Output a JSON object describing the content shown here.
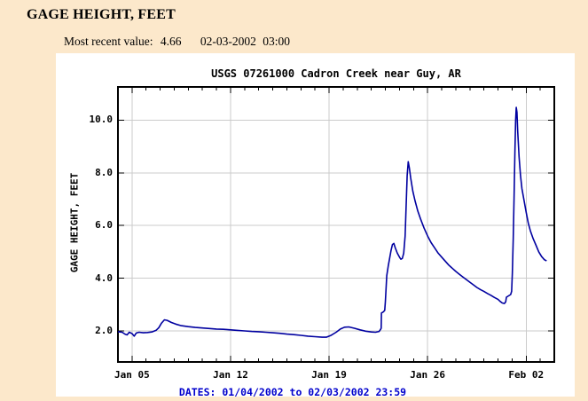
{
  "page": {
    "title": "GAGE HEIGHT, FEET",
    "most_recent": {
      "label": "Most recent value:",
      "value": "4.66",
      "date": "02-03-2002",
      "time": "03:00"
    }
  },
  "colors": {
    "page_bg": "#FCE8CB",
    "chart_bg": "#FFFFFF",
    "line": "#0000A0",
    "grid": "#CBCBCB",
    "axis": "#000000",
    "dates_text": "#0000CC",
    "text": "#000000"
  },
  "chart_data": {
    "type": "line",
    "title": "USGS 07261000 Cadron Creek near Guy, AR",
    "ylabel": "GAGE HEIGHT, FEET",
    "xlabel": "",
    "dates_label": "DATES: 01/04/2002 to 02/03/2002 23:59",
    "x_start": "01/04/2002 00:00",
    "x_end": "02/03/2002 23:59",
    "x_range_days": [
      0,
      31
    ],
    "y_range": [
      0.8,
      11.3
    ],
    "grid": true,
    "legend": "none",
    "x_major_ticks": [
      {
        "day": 1,
        "label": "Jan 05"
      },
      {
        "day": 8,
        "label": "Jan 12"
      },
      {
        "day": 15,
        "label": "Jan 19"
      },
      {
        "day": 22,
        "label": "Jan 26"
      },
      {
        "day": 29,
        "label": "Feb 02"
      }
    ],
    "y_ticks": [
      {
        "value": 2,
        "label": "2.0"
      },
      {
        "value": 4,
        "label": "4.0"
      },
      {
        "value": 6,
        "label": "6.0"
      },
      {
        "value": 8,
        "label": "8.0"
      },
      {
        "value": 10,
        "label": "10.0"
      }
    ],
    "series": [
      {
        "name": "gage-height-feet",
        "points": [
          [
            0,
            1.97
          ],
          [
            0.3,
            1.95
          ],
          [
            0.5,
            1.88
          ],
          [
            0.65,
            1.85
          ],
          [
            0.8,
            1.95
          ],
          [
            1.0,
            1.9
          ],
          [
            1.15,
            1.8
          ],
          [
            1.3,
            1.92
          ],
          [
            1.5,
            1.95
          ],
          [
            1.8,
            1.93
          ],
          [
            2.1,
            1.94
          ],
          [
            2.4,
            1.96
          ],
          [
            2.7,
            2.02
          ],
          [
            2.9,
            2.12
          ],
          [
            3.1,
            2.3
          ],
          [
            3.3,
            2.42
          ],
          [
            3.5,
            2.4
          ],
          [
            3.8,
            2.32
          ],
          [
            4.1,
            2.26
          ],
          [
            4.5,
            2.2
          ],
          [
            5.0,
            2.16
          ],
          [
            5.5,
            2.13
          ],
          [
            6.0,
            2.11
          ],
          [
            6.5,
            2.09
          ],
          [
            7.0,
            2.07
          ],
          [
            7.5,
            2.06
          ],
          [
            8.0,
            2.04
          ],
          [
            8.5,
            2.02
          ],
          [
            9.0,
            2.0
          ],
          [
            9.5,
            1.98
          ],
          [
            10.0,
            1.97
          ],
          [
            10.5,
            1.95
          ],
          [
            11.0,
            1.93
          ],
          [
            11.5,
            1.91
          ],
          [
            12.0,
            1.88
          ],
          [
            12.5,
            1.86
          ],
          [
            13.0,
            1.83
          ],
          [
            13.5,
            1.8
          ],
          [
            14.0,
            1.78
          ],
          [
            14.5,
            1.76
          ],
          [
            14.8,
            1.76
          ],
          [
            15.1,
            1.82
          ],
          [
            15.5,
            1.95
          ],
          [
            15.8,
            2.07
          ],
          [
            16.1,
            2.14
          ],
          [
            16.4,
            2.15
          ],
          [
            16.8,
            2.1
          ],
          [
            17.2,
            2.04
          ],
          [
            17.6,
            1.99
          ],
          [
            18.0,
            1.96
          ],
          [
            18.3,
            1.95
          ],
          [
            18.55,
            1.98
          ],
          [
            18.65,
            2.05
          ],
          [
            18.7,
            2.1
          ],
          [
            18.72,
            2.68
          ],
          [
            18.85,
            2.72
          ],
          [
            18.95,
            2.78
          ],
          [
            19.0,
            3.1
          ],
          [
            19.05,
            3.6
          ],
          [
            19.1,
            4.1
          ],
          [
            19.2,
            4.45
          ],
          [
            19.3,
            4.75
          ],
          [
            19.4,
            5.05
          ],
          [
            19.5,
            5.28
          ],
          [
            19.6,
            5.32
          ],
          [
            19.7,
            5.15
          ],
          [
            19.85,
            4.95
          ],
          [
            20.0,
            4.8
          ],
          [
            20.1,
            4.72
          ],
          [
            20.2,
            4.75
          ],
          [
            20.3,
            4.95
          ],
          [
            20.4,
            5.6
          ],
          [
            20.45,
            6.4
          ],
          [
            20.5,
            7.2
          ],
          [
            20.55,
            7.9
          ],
          [
            20.62,
            8.42
          ],
          [
            20.7,
            8.2
          ],
          [
            20.8,
            7.8
          ],
          [
            20.95,
            7.3
          ],
          [
            21.1,
            6.95
          ],
          [
            21.3,
            6.55
          ],
          [
            21.5,
            6.25
          ],
          [
            21.75,
            5.9
          ],
          [
            22.0,
            5.6
          ],
          [
            22.25,
            5.35
          ],
          [
            22.5,
            5.15
          ],
          [
            22.75,
            4.95
          ],
          [
            23.0,
            4.8
          ],
          [
            23.25,
            4.65
          ],
          [
            23.5,
            4.5
          ],
          [
            23.75,
            4.38
          ],
          [
            24.0,
            4.26
          ],
          [
            24.25,
            4.15
          ],
          [
            24.5,
            4.05
          ],
          [
            24.75,
            3.95
          ],
          [
            25.0,
            3.85
          ],
          [
            25.25,
            3.75
          ],
          [
            25.5,
            3.65
          ],
          [
            25.75,
            3.57
          ],
          [
            26.0,
            3.5
          ],
          [
            26.25,
            3.42
          ],
          [
            26.5,
            3.35
          ],
          [
            26.75,
            3.27
          ],
          [
            27.0,
            3.2
          ],
          [
            27.15,
            3.12
          ],
          [
            27.3,
            3.06
          ],
          [
            27.45,
            3.04
          ],
          [
            27.55,
            3.1
          ],
          [
            27.6,
            3.28
          ],
          [
            27.75,
            3.33
          ],
          [
            27.9,
            3.38
          ],
          [
            27.97,
            3.5
          ],
          [
            28.02,
            4.2
          ],
          [
            28.08,
            5.5
          ],
          [
            28.14,
            7.0
          ],
          [
            28.2,
            8.8
          ],
          [
            28.25,
            10.0
          ],
          [
            28.3,
            10.48
          ],
          [
            28.35,
            10.3
          ],
          [
            28.4,
            9.6
          ],
          [
            28.5,
            8.6
          ],
          [
            28.6,
            7.9
          ],
          [
            28.7,
            7.4
          ],
          [
            28.85,
            6.95
          ],
          [
            29.0,
            6.5
          ],
          [
            29.15,
            6.1
          ],
          [
            29.3,
            5.8
          ],
          [
            29.5,
            5.5
          ],
          [
            29.7,
            5.25
          ],
          [
            29.9,
            5.0
          ],
          [
            30.1,
            4.82
          ],
          [
            30.3,
            4.7
          ],
          [
            30.45,
            4.66
          ]
        ]
      }
    ]
  }
}
